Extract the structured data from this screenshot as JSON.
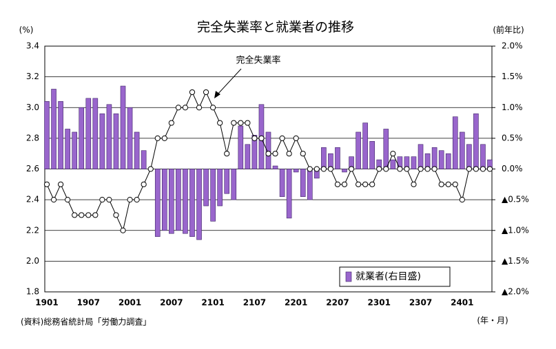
{
  "chart_data": {
    "type": "combo",
    "title": "完全失業率と就業者の推移",
    "y_label": "(%)",
    "y2_label": "(前年比)",
    "x_label": "(年・月)",
    "source": "(資料)総務省統計局「労働力調査」",
    "categories": [
      "1901",
      null,
      null,
      null,
      null,
      null,
      "1907",
      null,
      null,
      null,
      null,
      null,
      "2001",
      null,
      null,
      null,
      null,
      null,
      "2007",
      null,
      null,
      null,
      null,
      null,
      "2101",
      null,
      null,
      null,
      null,
      null,
      "2107",
      null,
      null,
      null,
      null,
      null,
      "2201",
      null,
      null,
      null,
      null,
      null,
      "2207",
      null,
      null,
      null,
      null,
      null,
      "2301",
      null,
      null,
      null,
      null,
      null,
      "2307",
      null,
      null,
      null,
      null,
      null,
      "2401",
      null,
      null,
      null,
      null
    ],
    "series": [
      {
        "name": "就業者(右目盛)",
        "type": "bar",
        "axis": "y2",
        "color": "#9966cc",
        "values": [
          1.1,
          1.3,
          1.1,
          0.65,
          0.6,
          1.0,
          1.15,
          1.15,
          0.9,
          1.05,
          0.9,
          1.35,
          1.0,
          0.6,
          0.3,
          0,
          -1.1,
          -1.0,
          -1.05,
          -1.0,
          -1.05,
          -1.1,
          -1.15,
          -0.6,
          -0.85,
          -0.6,
          -0.4,
          -0.5,
          0.7,
          0.4,
          0.55,
          1.05,
          0.6,
          0.05,
          -0.45,
          -0.8,
          -0.05,
          -0.45,
          -0.5,
          -0.15,
          0.35,
          0.25,
          0.35,
          -0.05,
          0.2,
          0.6,
          0.75,
          0.45,
          0.15,
          0.65,
          0.15,
          0.2,
          0.2,
          0.2,
          0.4,
          0.25,
          0.35,
          0.3,
          0.25,
          0.85,
          0.6,
          0.4,
          0.9,
          0.4,
          0.15
        ]
      },
      {
        "name": "完全失業率",
        "type": "line",
        "color": "#000000",
        "values": [
          2.5,
          2.4,
          2.5,
          2.4,
          2.3,
          2.3,
          2.3,
          2.3,
          2.4,
          2.4,
          2.3,
          2.2,
          2.4,
          2.4,
          2.5,
          2.6,
          2.8,
          2.8,
          2.9,
          3.0,
          3.0,
          3.1,
          3.0,
          3.1,
          3.0,
          2.9,
          2.7,
          2.9,
          2.9,
          2.9,
          2.8,
          2.8,
          2.7,
          2.7,
          2.8,
          2.7,
          2.8,
          2.7,
          2.6,
          2.6,
          2.6,
          2.6,
          2.5,
          2.5,
          2.6,
          2.5,
          2.5,
          2.5,
          2.6,
          2.6,
          2.7,
          2.6,
          2.6,
          2.5,
          2.6,
          2.6,
          2.6,
          2.5,
          2.5,
          2.5,
          2.4,
          2.6,
          2.6,
          2.6,
          2.6
        ]
      }
    ],
    "ylim": [
      1.8,
      3.4
    ],
    "yticks": [
      3.4,
      3.2,
      {
        "value": 3,
        "label": "3.0"
      },
      2.8,
      2.6,
      2.4,
      2.2,
      {
        "value": 2,
        "label": "2.0"
      },
      1.8
    ],
    "y2lim": [
      -2,
      2
    ],
    "y2ticks": [
      {
        "value": 2,
        "label": "2.0%"
      },
      {
        "value": 1.5,
        "label": "1.5%"
      },
      {
        "value": 1,
        "label": "1.0%"
      },
      {
        "value": 0.5,
        "label": "0.5%"
      },
      {
        "value": 0,
        "label": "0.0%"
      },
      {
        "value": -0.5,
        "label": "▲0.5%"
      },
      {
        "value": -1,
        "label": "▲1.0%"
      },
      {
        "value": -1.5,
        "label": "▲1.5%"
      },
      {
        "value": -2,
        "label": "▲2.0%"
      }
    ],
    "grid": true,
    "legend": "bottom-right"
  }
}
